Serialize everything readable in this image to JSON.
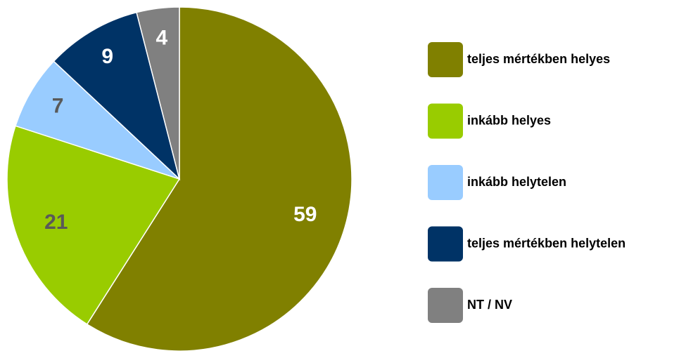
{
  "chart_data": {
    "type": "pie",
    "categories": [
      "teljes mértékben helyes",
      "inkább helyes",
      "inkább helytelen",
      "teljes mértékben helytelen",
      "NT / NV"
    ],
    "values": [
      59,
      21,
      7,
      9,
      4
    ],
    "colors": [
      "#808000",
      "#99cc00",
      "#99ccff",
      "#003366",
      "#808080"
    ],
    "label_colors": [
      "#ffffff",
      "#595959",
      "#595959",
      "#ffffff",
      "#ffffff"
    ],
    "legend": "right"
  }
}
